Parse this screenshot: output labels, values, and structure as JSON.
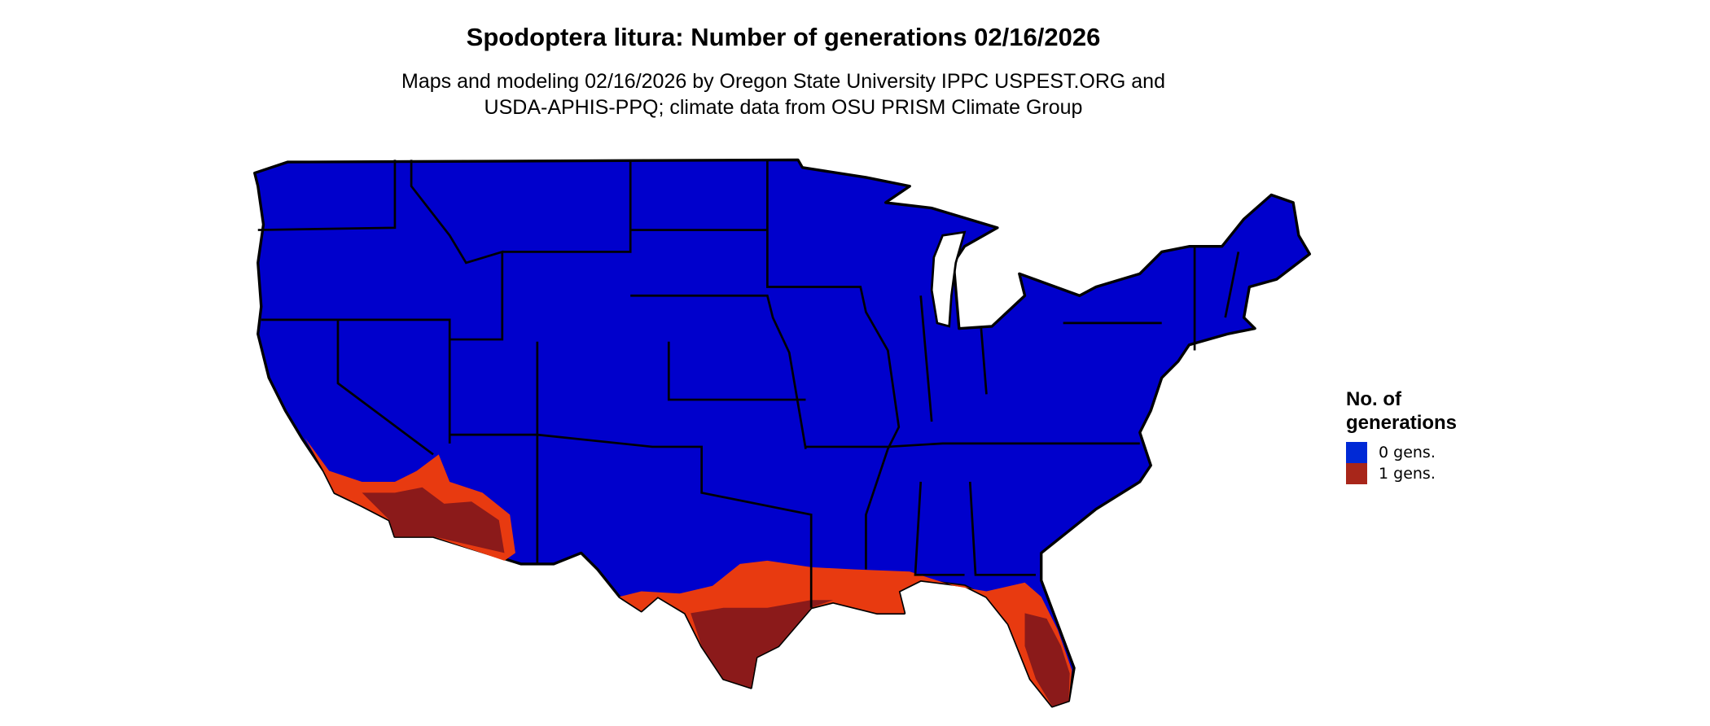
{
  "title": "Spodoptera litura: Number of generations 02/16/2026",
  "subtitle": {
    "line1": "Maps and modeling 02/16/2026 by Oregon State University IPPC USPEST.ORG and",
    "line2": "USDA-APHIS-PPQ; climate data from OSU PRISM Climate Group"
  },
  "map": {
    "region": "Contiguous United States",
    "colors": {
      "zero_gens": "#0000CC",
      "one_gen_light": "#E83A10",
      "one_gen_dark": "#8B1A1A",
      "border": "#000000"
    }
  },
  "legend": {
    "title_line1": "No. of",
    "title_line2": "generations",
    "items": [
      {
        "label": "0 gens.",
        "color": "#0029D6"
      },
      {
        "label": "1 gens.",
        "color": "#A8261A"
      }
    ]
  }
}
